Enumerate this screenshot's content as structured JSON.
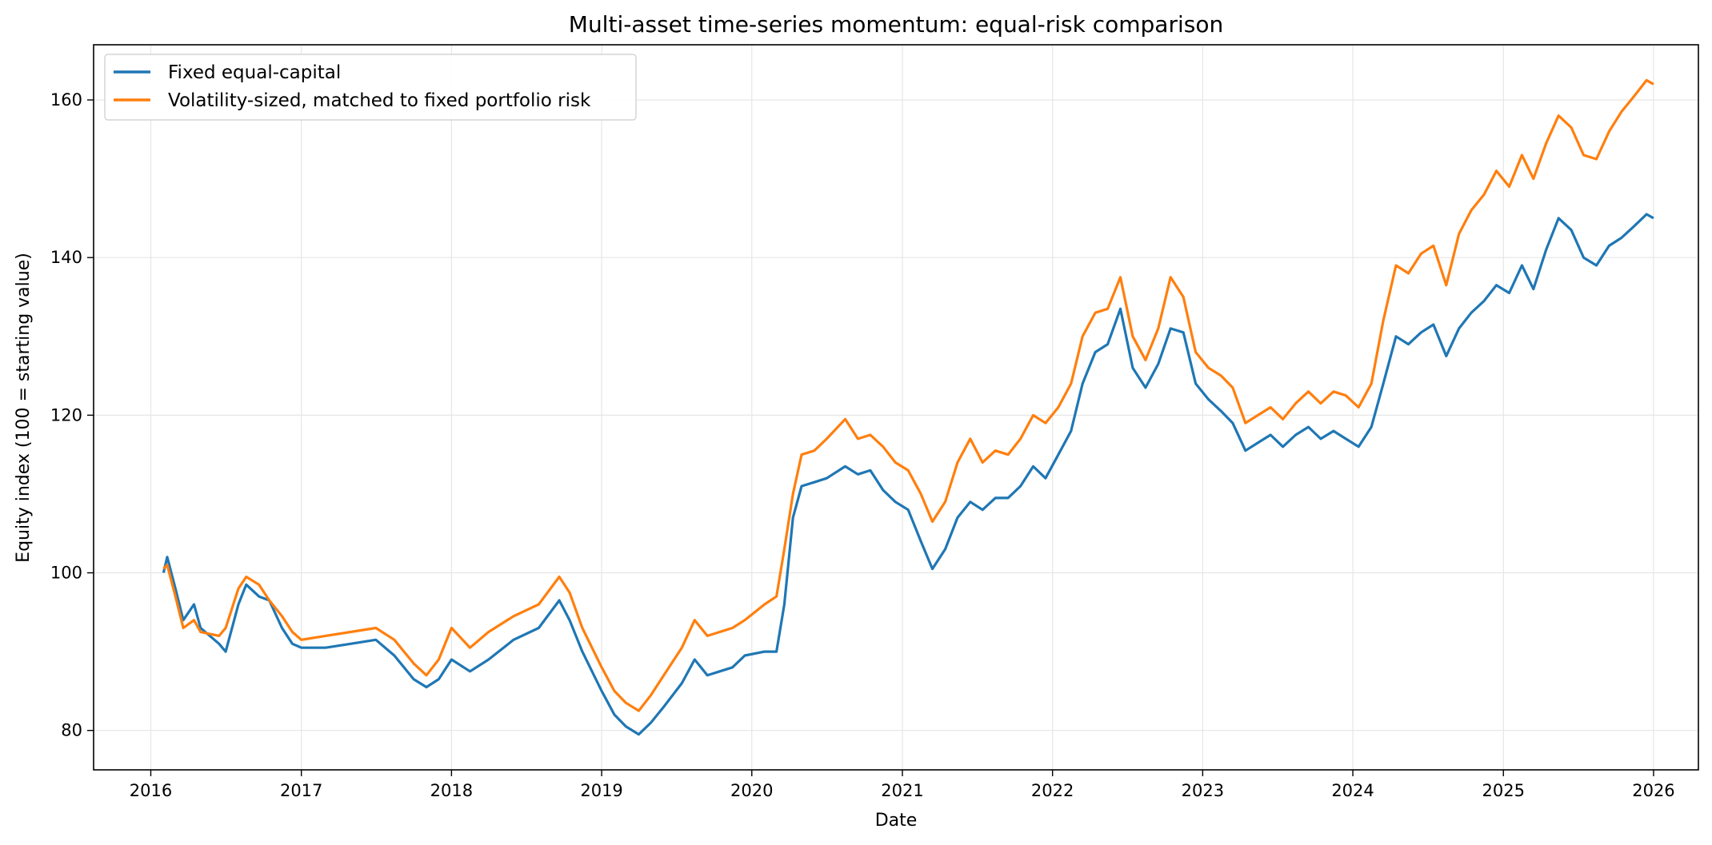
{
  "chart_data": {
    "type": "line",
    "title": "Multi-asset time-series momentum: equal-risk comparison",
    "xlabel": "Date",
    "ylabel": "Equity index (100 = starting value)",
    "x_type": "date",
    "xlim": [
      "2015-08-15",
      "2026-04-20"
    ],
    "ylim": [
      75,
      167
    ],
    "x_ticks": [
      "2016",
      "2017",
      "2018",
      "2019",
      "2020",
      "2021",
      "2022",
      "2023",
      "2024",
      "2025",
      "2026"
    ],
    "y_ticks": [
      80,
      100,
      120,
      140,
      160
    ],
    "grid": true,
    "legend_position": "top-left",
    "series": [
      {
        "name": "Fixed equal-capital",
        "color": "#1f77b4",
        "points": [
          [
            "2016-02-01",
            100.0
          ],
          [
            "2016-02-10",
            102.0
          ],
          [
            "2016-03-01",
            98.0
          ],
          [
            "2016-03-20",
            94.0
          ],
          [
            "2016-04-15",
            96.0
          ],
          [
            "2016-05-01",
            93.0
          ],
          [
            "2016-06-15",
            91.0
          ],
          [
            "2016-07-01",
            90.0
          ],
          [
            "2016-08-01",
            96.0
          ],
          [
            "2016-08-20",
            98.5
          ],
          [
            "2016-09-20",
            97.0
          ],
          [
            "2016-10-15",
            96.5
          ],
          [
            "2016-11-15",
            93.0
          ],
          [
            "2016-12-10",
            91.0
          ],
          [
            "2017-01-01",
            90.5
          ],
          [
            "2017-03-01",
            90.5
          ],
          [
            "2017-05-01",
            91.0
          ],
          [
            "2017-07-01",
            91.5
          ],
          [
            "2017-08-15",
            89.5
          ],
          [
            "2017-10-01",
            86.5
          ],
          [
            "2017-11-01",
            85.5
          ],
          [
            "2017-12-01",
            86.5
          ],
          [
            "2018-01-01",
            89.0
          ],
          [
            "2018-02-15",
            87.5
          ],
          [
            "2018-04-01",
            89.0
          ],
          [
            "2018-06-01",
            91.5
          ],
          [
            "2018-08-01",
            93.0
          ],
          [
            "2018-09-20",
            96.5
          ],
          [
            "2018-10-15",
            94.0
          ],
          [
            "2018-11-15",
            90.0
          ],
          [
            "2019-01-01",
            85.0
          ],
          [
            "2019-02-01",
            82.0
          ],
          [
            "2019-03-01",
            80.5
          ],
          [
            "2019-04-01",
            79.5
          ],
          [
            "2019-05-01",
            81.0
          ],
          [
            "2019-06-01",
            83.0
          ],
          [
            "2019-07-15",
            86.0
          ],
          [
            "2019-08-15",
            89.0
          ],
          [
            "2019-09-15",
            87.0
          ],
          [
            "2019-10-15",
            87.5
          ],
          [
            "2019-11-15",
            88.0
          ],
          [
            "2019-12-15",
            89.5
          ],
          [
            "2020-02-01",
            90.0
          ],
          [
            "2020-03-01",
            90.0
          ],
          [
            "2020-03-20",
            96.0
          ],
          [
            "2020-04-10",
            107.0
          ],
          [
            "2020-05-01",
            111.0
          ],
          [
            "2020-06-01",
            111.5
          ],
          [
            "2020-07-01",
            112.0
          ],
          [
            "2020-08-15",
            113.5
          ],
          [
            "2020-09-15",
            112.5
          ],
          [
            "2020-10-15",
            113.0
          ],
          [
            "2020-11-15",
            110.5
          ],
          [
            "2020-12-15",
            109.0
          ],
          [
            "2021-01-15",
            108.0
          ],
          [
            "2021-02-15",
            104.0
          ],
          [
            "2021-03-15",
            100.5
          ],
          [
            "2021-04-15",
            103.0
          ],
          [
            "2021-05-15",
            107.0
          ],
          [
            "2021-06-15",
            109.0
          ],
          [
            "2021-07-15",
            108.0
          ],
          [
            "2021-08-15",
            109.5
          ],
          [
            "2021-09-15",
            109.5
          ],
          [
            "2021-10-15",
            111.0
          ],
          [
            "2021-11-15",
            113.5
          ],
          [
            "2021-12-15",
            112.0
          ],
          [
            "2022-01-15",
            115.0
          ],
          [
            "2022-02-15",
            118.0
          ],
          [
            "2022-03-15",
            124.0
          ],
          [
            "2022-04-15",
            128.0
          ],
          [
            "2022-05-15",
            129.0
          ],
          [
            "2022-06-15",
            133.5
          ],
          [
            "2022-07-15",
            126.0
          ],
          [
            "2022-08-15",
            123.5
          ],
          [
            "2022-09-15",
            126.5
          ],
          [
            "2022-10-15",
            131.0
          ],
          [
            "2022-11-15",
            130.5
          ],
          [
            "2022-12-15",
            124.0
          ],
          [
            "2023-01-15",
            122.0
          ],
          [
            "2023-02-15",
            120.5
          ],
          [
            "2023-03-15",
            119.0
          ],
          [
            "2023-04-15",
            115.5
          ],
          [
            "2023-05-15",
            116.5
          ],
          [
            "2023-06-15",
            117.5
          ],
          [
            "2023-07-15",
            116.0
          ],
          [
            "2023-08-15",
            117.5
          ],
          [
            "2023-09-15",
            118.5
          ],
          [
            "2023-10-15",
            117.0
          ],
          [
            "2023-11-15",
            118.0
          ],
          [
            "2023-12-15",
            117.0
          ],
          [
            "2024-01-15",
            116.0
          ],
          [
            "2024-02-15",
            118.5
          ],
          [
            "2024-03-15",
            124.0
          ],
          [
            "2024-04-15",
            130.0
          ],
          [
            "2024-05-15",
            129.0
          ],
          [
            "2024-06-15",
            130.5
          ],
          [
            "2024-07-15",
            131.5
          ],
          [
            "2024-08-15",
            127.5
          ],
          [
            "2024-09-15",
            131.0
          ],
          [
            "2024-10-15",
            133.0
          ],
          [
            "2024-11-15",
            134.5
          ],
          [
            "2024-12-15",
            136.5
          ],
          [
            "2025-01-15",
            135.5
          ],
          [
            "2025-02-15",
            139.0
          ],
          [
            "2025-03-15",
            136.0
          ],
          [
            "2025-04-15",
            141.0
          ],
          [
            "2025-05-15",
            145.0
          ],
          [
            "2025-06-15",
            143.5
          ],
          [
            "2025-07-15",
            140.0
          ],
          [
            "2025-08-15",
            139.0
          ],
          [
            "2025-09-15",
            141.5
          ],
          [
            "2025-10-15",
            142.5
          ],
          [
            "2025-11-15",
            144.0
          ],
          [
            "2025-12-15",
            145.5
          ],
          [
            "2026-01-01",
            145.0
          ]
        ]
      },
      {
        "name": "Volatility-sized, matched to fixed portfolio risk",
        "color": "#ff7f0e",
        "points": [
          [
            "2016-02-01",
            100.5
          ],
          [
            "2016-02-10",
            101.0
          ],
          [
            "2016-03-01",
            97.0
          ],
          [
            "2016-03-20",
            93.0
          ],
          [
            "2016-04-15",
            94.0
          ],
          [
            "2016-05-01",
            92.5
          ],
          [
            "2016-06-15",
            92.0
          ],
          [
            "2016-07-01",
            93.0
          ],
          [
            "2016-08-01",
            98.0
          ],
          [
            "2016-08-20",
            99.5
          ],
          [
            "2016-09-20",
            98.5
          ],
          [
            "2016-10-15",
            96.5
          ],
          [
            "2016-11-15",
            94.5
          ],
          [
            "2016-12-10",
            92.5
          ],
          [
            "2017-01-01",
            91.5
          ],
          [
            "2017-03-01",
            92.0
          ],
          [
            "2017-05-01",
            92.5
          ],
          [
            "2017-07-01",
            93.0
          ],
          [
            "2017-08-15",
            91.5
          ],
          [
            "2017-10-01",
            88.5
          ],
          [
            "2017-11-01",
            87.0
          ],
          [
            "2017-12-01",
            89.0
          ],
          [
            "2018-01-01",
            93.0
          ],
          [
            "2018-02-15",
            90.5
          ],
          [
            "2018-04-01",
            92.5
          ],
          [
            "2018-06-01",
            94.5
          ],
          [
            "2018-08-01",
            96.0
          ],
          [
            "2018-09-20",
            99.5
          ],
          [
            "2018-10-15",
            97.5
          ],
          [
            "2018-11-15",
            93.0
          ],
          [
            "2019-01-01",
            88.0
          ],
          [
            "2019-02-01",
            85.0
          ],
          [
            "2019-03-01",
            83.5
          ],
          [
            "2019-04-01",
            82.5
          ],
          [
            "2019-05-01",
            84.5
          ],
          [
            "2019-06-01",
            87.0
          ],
          [
            "2019-07-15",
            90.5
          ],
          [
            "2019-08-15",
            94.0
          ],
          [
            "2019-09-15",
            92.0
          ],
          [
            "2019-10-15",
            92.5
          ],
          [
            "2019-11-15",
            93.0
          ],
          [
            "2019-12-15",
            94.0
          ],
          [
            "2020-02-01",
            96.0
          ],
          [
            "2020-03-01",
            97.0
          ],
          [
            "2020-03-20",
            103.0
          ],
          [
            "2020-04-10",
            110.0
          ],
          [
            "2020-05-01",
            115.0
          ],
          [
            "2020-06-01",
            115.5
          ],
          [
            "2020-07-01",
            117.0
          ],
          [
            "2020-08-15",
            119.5
          ],
          [
            "2020-09-15",
            117.0
          ],
          [
            "2020-10-15",
            117.5
          ],
          [
            "2020-11-15",
            116.0
          ],
          [
            "2020-12-15",
            114.0
          ],
          [
            "2021-01-15",
            113.0
          ],
          [
            "2021-02-15",
            110.0
          ],
          [
            "2021-03-15",
            106.5
          ],
          [
            "2021-04-15",
            109.0
          ],
          [
            "2021-05-15",
            114.0
          ],
          [
            "2021-06-15",
            117.0
          ],
          [
            "2021-07-15",
            114.0
          ],
          [
            "2021-08-15",
            115.5
          ],
          [
            "2021-09-15",
            115.0
          ],
          [
            "2021-10-15",
            117.0
          ],
          [
            "2021-11-15",
            120.0
          ],
          [
            "2021-12-15",
            119.0
          ],
          [
            "2022-01-15",
            121.0
          ],
          [
            "2022-02-15",
            124.0
          ],
          [
            "2022-03-15",
            130.0
          ],
          [
            "2022-04-15",
            133.0
          ],
          [
            "2022-05-15",
            133.5
          ],
          [
            "2022-06-15",
            137.5
          ],
          [
            "2022-07-15",
            130.0
          ],
          [
            "2022-08-15",
            127.0
          ],
          [
            "2022-09-15",
            131.0
          ],
          [
            "2022-10-15",
            137.5
          ],
          [
            "2022-11-15",
            135.0
          ],
          [
            "2022-12-15",
            128.0
          ],
          [
            "2023-01-15",
            126.0
          ],
          [
            "2023-02-15",
            125.0
          ],
          [
            "2023-03-15",
            123.5
          ],
          [
            "2023-04-15",
            119.0
          ],
          [
            "2023-05-15",
            120.0
          ],
          [
            "2023-06-15",
            121.0
          ],
          [
            "2023-07-15",
            119.5
          ],
          [
            "2023-08-15",
            121.5
          ],
          [
            "2023-09-15",
            123.0
          ],
          [
            "2023-10-15",
            121.5
          ],
          [
            "2023-11-15",
            123.0
          ],
          [
            "2023-12-15",
            122.5
          ],
          [
            "2024-01-15",
            121.0
          ],
          [
            "2024-02-15",
            124.0
          ],
          [
            "2024-03-15",
            132.0
          ],
          [
            "2024-04-15",
            139.0
          ],
          [
            "2024-05-15",
            138.0
          ],
          [
            "2024-06-15",
            140.5
          ],
          [
            "2024-07-15",
            141.5
          ],
          [
            "2024-08-15",
            136.5
          ],
          [
            "2024-09-15",
            143.0
          ],
          [
            "2024-10-15",
            146.0
          ],
          [
            "2024-11-15",
            148.0
          ],
          [
            "2024-12-15",
            151.0
          ],
          [
            "2025-01-15",
            149.0
          ],
          [
            "2025-02-15",
            153.0
          ],
          [
            "2025-03-15",
            150.0
          ],
          [
            "2025-04-15",
            154.5
          ],
          [
            "2025-05-15",
            158.0
          ],
          [
            "2025-06-15",
            156.5
          ],
          [
            "2025-07-15",
            153.0
          ],
          [
            "2025-08-15",
            152.5
          ],
          [
            "2025-09-15",
            156.0
          ],
          [
            "2025-10-15",
            158.5
          ],
          [
            "2025-11-15",
            160.5
          ],
          [
            "2025-12-15",
            162.5
          ],
          [
            "2026-01-01",
            162.0
          ]
        ]
      }
    ]
  }
}
